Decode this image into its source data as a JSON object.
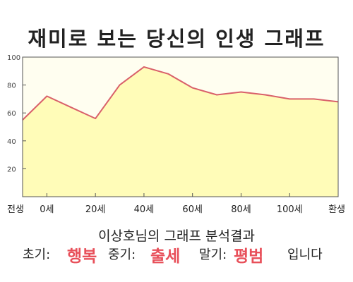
{
  "title": "재미로 보는 당신의 인생 그래프",
  "subtitle": "이상호님의 그래프 분석결과",
  "result": {
    "early_label": "초기:",
    "early_value": "행복",
    "mid_label": "중기:",
    "mid_value": "출세",
    "late_label": "말기:",
    "late_value": "평범",
    "ending": "입니다"
  },
  "colors": {
    "line": "#d9606a",
    "fill": "#fffcb8",
    "plot_bg": "#fffef0",
    "highlight": "#e8505a"
  },
  "chart_data": {
    "type": "area",
    "title": "재미로 보는 당신의 인생 그래프",
    "ylim": [
      0,
      100
    ],
    "yticks": [
      20,
      40,
      60,
      80,
      100
    ],
    "xlim": [
      -10,
      120
    ],
    "xticks": [
      {
        "x": -10,
        "label": "전생"
      },
      {
        "x": 0,
        "label": "0세"
      },
      {
        "x": 20,
        "label": "20세"
      },
      {
        "x": 40,
        "label": "40세"
      },
      {
        "x": 60,
        "label": "60세"
      },
      {
        "x": 80,
        "label": "80세"
      },
      {
        "x": 100,
        "label": "100세"
      },
      {
        "x": 120,
        "label": "환생"
      }
    ],
    "series": [
      {
        "x": [
          -10,
          0,
          10,
          20,
          30,
          40,
          50,
          60,
          70,
          80,
          90,
          100,
          110,
          120
        ],
        "values": [
          55,
          72,
          64,
          56,
          80,
          93,
          88,
          78,
          73,
          75,
          73,
          70,
          70,
          68
        ]
      }
    ],
    "grid": false
  }
}
